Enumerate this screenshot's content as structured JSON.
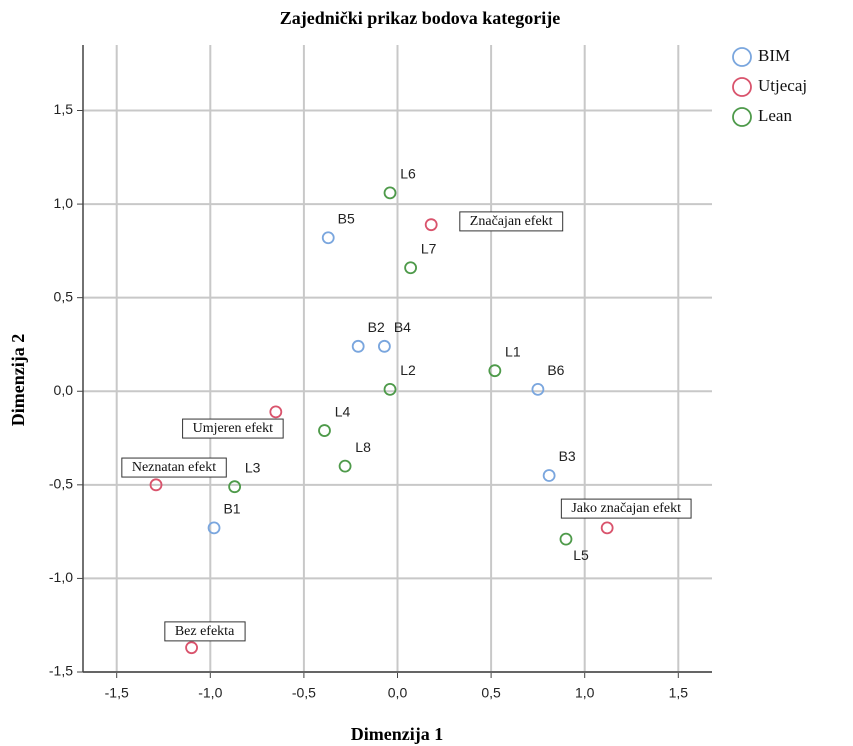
{
  "chart_data": {
    "type": "scatter",
    "title": "Zajednički prikaz bodova kategorije",
    "x_label": "Dimenzija 1",
    "y_label": "Dimenzija 2",
    "xlim": [
      -1.68,
      1.68
    ],
    "ylim": [
      -1.5,
      1.85
    ],
    "xticks": [
      {
        "value": -1.5,
        "label": "-1,5"
      },
      {
        "value": -1.0,
        "label": "-1,0"
      },
      {
        "value": -0.5,
        "label": "-0,5"
      },
      {
        "value": 0.0,
        "label": "0,0"
      },
      {
        "value": 0.5,
        "label": "0,5"
      },
      {
        "value": 1.0,
        "label": "1,0"
      },
      {
        "value": 1.5,
        "label": "1,5"
      }
    ],
    "yticks": [
      {
        "value": -1.5,
        "label": "-1,5"
      },
      {
        "value": -1.0,
        "label": "-1,0"
      },
      {
        "value": -0.5,
        "label": "-0,5"
      },
      {
        "value": 0.0,
        "label": "0,0"
      },
      {
        "value": 0.5,
        "label": "0,5"
      },
      {
        "value": 1.0,
        "label": "1,0"
      },
      {
        "value": 1.5,
        "label": "1,5"
      }
    ],
    "grid": true,
    "legend": "right",
    "series": [
      {
        "name": "BIM",
        "color": "#7aa6de",
        "labels": [
          "B5",
          "B2",
          "B4",
          "B6",
          "B3",
          "B1"
        ],
        "x": [
          -0.37,
          -0.21,
          -0.07,
          0.75,
          0.81,
          -0.98
        ],
        "y": [
          0.82,
          0.24,
          0.24,
          0.01,
          -0.45,
          -0.73
        ]
      },
      {
        "name": "Utjecaj",
        "color": "#d9536c",
        "labels": [
          "Značajan efekt",
          "Umjeren efekt",
          "Neznatan efekt",
          "Jako značajan efekt",
          "Bez efekta"
        ],
        "x": [
          0.18,
          -0.65,
          -1.29,
          1.12,
          -1.1
        ],
        "y": [
          0.89,
          -0.11,
          -0.5,
          -0.73,
          -1.37
        ]
      },
      {
        "name": "Lean",
        "color": "#4e9a4a",
        "labels": [
          "L6",
          "L7",
          "L1",
          "L2",
          "L4",
          "L8",
          "L3",
          "L5"
        ],
        "x": [
          -0.04,
          0.07,
          0.52,
          -0.04,
          -0.39,
          -0.28,
          -0.87,
          0.9
        ],
        "y": [
          1.06,
          0.66,
          0.11,
          0.01,
          -0.21,
          -0.4,
          -0.51,
          -0.79
        ]
      }
    ]
  }
}
